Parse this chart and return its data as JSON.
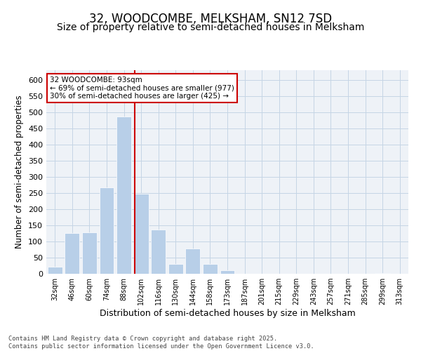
{
  "title": "32, WOODCOMBE, MELKSHAM, SN12 7SD",
  "subtitle": "Size of property relative to semi-detached houses in Melksham",
  "xlabel": "Distribution of semi-detached houses by size in Melksham",
  "ylabel": "Number of semi-detached properties",
  "categories": [
    "32sqm",
    "46sqm",
    "60sqm",
    "74sqm",
    "88sqm",
    "102sqm",
    "116sqm",
    "130sqm",
    "144sqm",
    "158sqm",
    "173sqm",
    "187sqm",
    "201sqm",
    "215sqm",
    "229sqm",
    "243sqm",
    "257sqm",
    "271sqm",
    "285sqm",
    "299sqm",
    "313sqm"
  ],
  "values": [
    22,
    126,
    128,
    268,
    486,
    248,
    137,
    30,
    78,
    30,
    10,
    1,
    1,
    0,
    0,
    0,
    0,
    0,
    0,
    2,
    1
  ],
  "bar_color": "#b8cfe8",
  "vline_x_index": 4.62,
  "vline_color": "#cc0000",
  "annotation_text": "32 WOODCOMBE: 93sqm\n← 69% of semi-detached houses are smaller (977)\n30% of semi-detached houses are larger (425) →",
  "annotation_box_color": "#cc0000",
  "grid_color": "#c5d5e5",
  "background_color": "#eef2f7",
  "ylim": [
    0,
    630
  ],
  "yticks": [
    0,
    50,
    100,
    150,
    200,
    250,
    300,
    350,
    400,
    450,
    500,
    550,
    600
  ],
  "footer": "Contains HM Land Registry data © Crown copyright and database right 2025.\nContains public sector information licensed under the Open Government Licence v3.0.",
  "title_fontsize": 12,
  "subtitle_fontsize": 10,
  "xlabel_fontsize": 9,
  "ylabel_fontsize": 8.5
}
